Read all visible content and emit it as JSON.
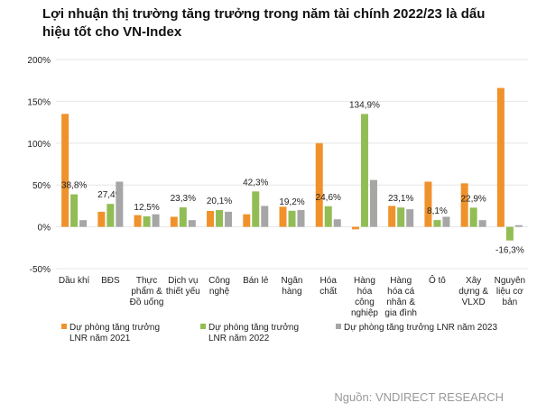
{
  "chart_data": {
    "type": "bar",
    "title": "Lợi nhuận thị trường tăng trưởng trong năm tài chính 2022/23 là dấu hiệu tốt cho VN-Index",
    "categories": [
      "Dầu khí",
      "BĐS",
      "Thực\nphẩm &\nĐồ uống",
      "Dịch vụ\nthiết yếu",
      "Công\nnghệ",
      "Bán lẻ",
      "Ngân\nhàng",
      "Hóa\nchất",
      "Hàng\nhóa\ncông\nnghiệp",
      "Hàng\nhóa cá\nnhân &\ngia đình",
      "Ô tô",
      "Xây\ndựng &\nVLXD",
      "Nguyên\nliệu cơ\nbản"
    ],
    "series": [
      {
        "name": "Dự phòng tăng trưởng\nLNR năm 2021",
        "color": "#f0922b",
        "values": [
          135,
          18,
          14,
          12,
          19,
          15,
          24,
          100,
          -3,
          25,
          54,
          52,
          166
        ]
      },
      {
        "name": "Dự phòng tăng trưởng\nLNR năm 2022",
        "color": "#92bd55",
        "values": [
          38.8,
          27.4,
          12.5,
          23.3,
          20.1,
          42.3,
          19.2,
          24.6,
          134.9,
          23.1,
          8.1,
          22.9,
          -16.3
        ],
        "value_labels": [
          "38,8%",
          "27,4%",
          "12,5%",
          "23,3%",
          "20,1%",
          "42,3%",
          "19,2%",
          "24,6%",
          "134,9%",
          "23,1%",
          "8,1%",
          "22,9%",
          "-16,3%"
        ]
      },
      {
        "name": "Dự phòng tăng trưởng LNR năm 2023",
        "color": "#a6a6a6",
        "values": [
          8,
          54,
          15,
          8,
          18,
          25,
          20,
          9,
          56,
          21,
          12,
          8,
          2
        ]
      }
    ],
    "ylim": [
      -50,
      200
    ],
    "yticks": [
      {
        "value": -50,
        "label": "-50%"
      },
      {
        "value": 0,
        "label": "0%"
      },
      {
        "value": 50,
        "label": "50%"
      },
      {
        "value": 100,
        "label": "100%"
      },
      {
        "value": 150,
        "label": "150%"
      },
      {
        "value": 200,
        "label": "200%"
      }
    ],
    "grid": true,
    "source": "Nguồn: VNDIRECT RESEARCH"
  }
}
